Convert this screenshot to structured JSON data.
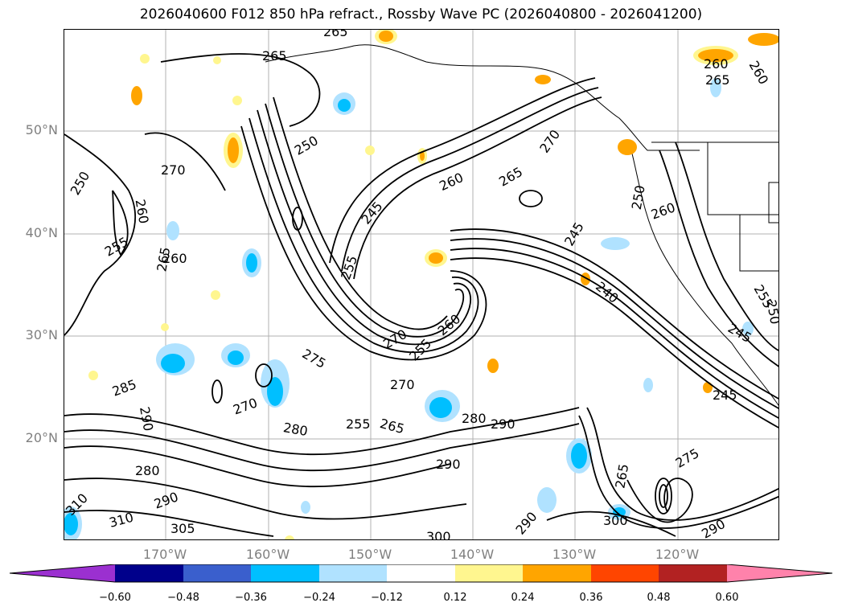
{
  "title": "2026040600 F012 850 hPa refract., Rossby Wave PC (2026040800 - 2026041200)",
  "latitude_labels": [
    "50°N",
    "40°N",
    "30°N",
    "20°N"
  ],
  "longitude_labels": [
    "170°W",
    "160°W",
    "150°W",
    "140°W",
    "130°W",
    "120°W"
  ],
  "colorbar": {
    "colors": [
      "#9b30d0",
      "#00008b",
      "#3a5fcd",
      "#00bfff",
      "#b0e2ff",
      "#ffffff",
      "#fff68f",
      "#ffa500",
      "#ff4500",
      "#b22222",
      "#ff82ab"
    ],
    "tick_labels": [
      "−0.60",
      "−0.48",
      "−0.36",
      "−0.24",
      "−0.12",
      "0.12",
      "0.24",
      "0.36",
      "0.48",
      "0.60"
    ]
  },
  "contour_labels": [
    "265",
    "265",
    "260",
    "265",
    "260",
    "250",
    "270",
    "250",
    "260",
    "255",
    "265",
    "260",
    "245",
    "260",
    "265",
    "270",
    "250",
    "260",
    "245",
    "255",
    "240",
    "255",
    "250",
    "270",
    "255",
    "275",
    "260",
    "245",
    "285",
    "290",
    "270",
    "280",
    "255",
    "265",
    "270",
    "290",
    "245",
    "280",
    "290",
    "280",
    "290",
    "300",
    "310",
    "290",
    "305",
    "300",
    "290",
    "310",
    "265",
    "275"
  ]
}
